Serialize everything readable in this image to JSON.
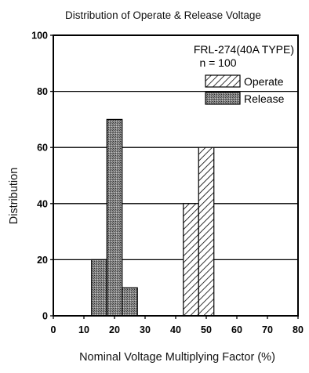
{
  "chart_data": {
    "type": "bar",
    "title": "Distribution of Operate & Release Voltage",
    "xlabel": "Nominal Voltage Multiplying Factor (%)",
    "ylabel": "Distribution",
    "xlim": [
      0,
      80
    ],
    "ylim": [
      0,
      100
    ],
    "x_ticks": [
      "0",
      "10",
      "20",
      "30",
      "40",
      "50",
      "60",
      "70",
      "80"
    ],
    "y_ticks": [
      "0",
      "20",
      "40",
      "60",
      "80",
      "100"
    ],
    "grid": "horizontal",
    "annotations": [
      "FRL-274(40A TYPE)",
      "n = 100"
    ],
    "legend_position": "top-right",
    "series": [
      {
        "name": "Operate",
        "style": "hatched",
        "color": "#ffffff",
        "bins": [
          {
            "x0": 42.5,
            "x1": 47.5,
            "value": 40
          },
          {
            "x0": 47.5,
            "x1": 52.5,
            "value": 60
          }
        ]
      },
      {
        "name": "Release",
        "style": "stippled-dark",
        "color": "#6b6b6b",
        "bins": [
          {
            "x0": 12.5,
            "x1": 17.5,
            "value": 20
          },
          {
            "x0": 17.5,
            "x1": 22.5,
            "value": 70
          },
          {
            "x0": 22.5,
            "x1": 27.5,
            "value": 10
          }
        ]
      }
    ]
  }
}
